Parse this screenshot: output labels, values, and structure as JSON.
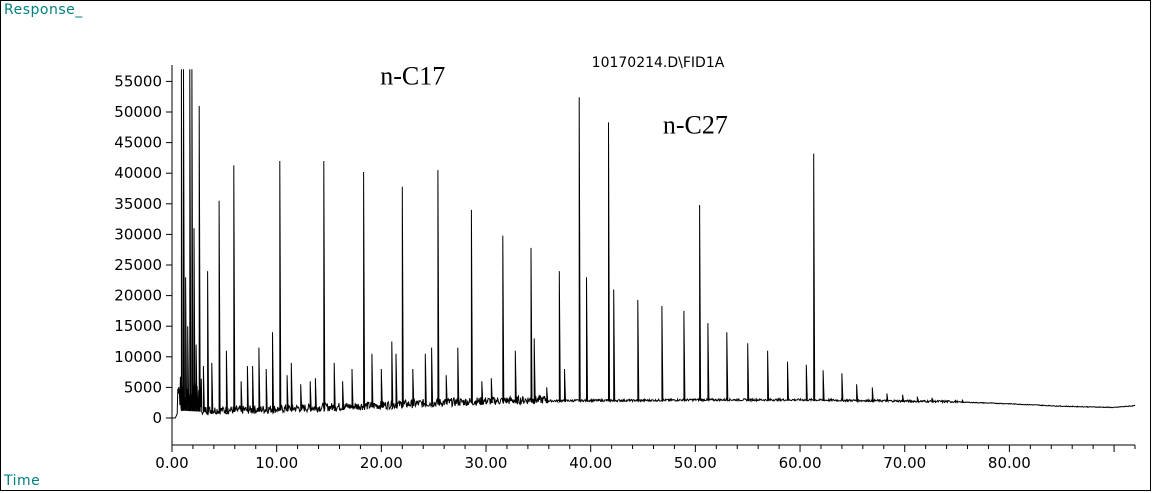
{
  "window": {
    "response_label": "Response_",
    "time_label": "Time"
  },
  "chart_data": {
    "type": "line",
    "title": "10170214.D\\FID1A",
    "xlabel": "Time",
    "ylabel": "Response_",
    "xlim": [
      0,
      92
    ],
    "ylim": [
      0,
      57000
    ],
    "xticks": [
      0,
      10,
      20,
      30,
      40,
      50,
      60,
      70,
      80
    ],
    "xtick_labels": [
      "0.00",
      "10.00",
      "20.00",
      "30.00",
      "40.00",
      "50.00",
      "60.00",
      "70.00",
      "80.00"
    ],
    "yticks": [
      0,
      5000,
      10000,
      15000,
      20000,
      25000,
      30000,
      35000,
      40000,
      45000,
      50000,
      55000
    ],
    "ytick_labels": [
      "0",
      "5000",
      "10000",
      "15000",
      "20000",
      "25000",
      "30000",
      "35000",
      "40000",
      "45000",
      "50000",
      "55000"
    ],
    "annotations": [
      {
        "text": "n-C17",
        "x": 23.0,
        "y": 54500
      },
      {
        "text": "n-C27",
        "x": 50.0,
        "y": 46500
      }
    ],
    "series": [
      {
        "baseline": [
          [
            0,
            0
          ],
          [
            0.3,
            0
          ],
          [
            0.6,
            1000
          ],
          [
            1,
            1200
          ],
          [
            3,
            1000
          ],
          [
            6,
            1000
          ],
          [
            10,
            1200
          ],
          [
            15,
            1500
          ],
          [
            20,
            1800
          ],
          [
            25,
            2200
          ],
          [
            30,
            2500
          ],
          [
            35,
            2700
          ],
          [
            40,
            2800
          ],
          [
            45,
            2800
          ],
          [
            50,
            2900
          ],
          [
            55,
            2900
          ],
          [
            60,
            2900
          ],
          [
            65,
            2800
          ],
          [
            70,
            2700
          ],
          [
            75,
            2600
          ],
          [
            80,
            2300
          ],
          [
            85,
            1900
          ],
          [
            90,
            1700
          ],
          [
            92,
            2000
          ]
        ],
        "peaks": [
          [
            0.9,
            57000
          ],
          [
            1.1,
            57000
          ],
          [
            1.3,
            23000
          ],
          [
            1.5,
            15000
          ],
          [
            1.7,
            57000
          ],
          [
            1.9,
            57000
          ],
          [
            2.1,
            31000
          ],
          [
            2.3,
            12000
          ],
          [
            2.6,
            51000
          ],
          [
            3.0,
            8500
          ],
          [
            3.4,
            24000
          ],
          [
            3.8,
            9000
          ],
          [
            4.5,
            35500
          ],
          [
            5.2,
            11000
          ],
          [
            5.9,
            41300
          ],
          [
            6.6,
            6000
          ],
          [
            7.2,
            8500
          ],
          [
            7.7,
            8500
          ],
          [
            8.3,
            11500
          ],
          [
            9.0,
            8000
          ],
          [
            9.6,
            14000
          ],
          [
            10.3,
            42000
          ],
          [
            11.0,
            7000
          ],
          [
            11.4,
            9000
          ],
          [
            12.3,
            5500
          ],
          [
            13.2,
            6000
          ],
          [
            13.7,
            6500
          ],
          [
            14.5,
            42000
          ],
          [
            15.5,
            9000
          ],
          [
            16.3,
            6000
          ],
          [
            17.2,
            8000
          ],
          [
            18.3,
            40200
          ],
          [
            19.1,
            10500
          ],
          [
            20.0,
            8000
          ],
          [
            21.0,
            12500
          ],
          [
            21.4,
            10500
          ],
          [
            22.0,
            37800
          ],
          [
            23.0,
            8000
          ],
          [
            24.2,
            10500
          ],
          [
            24.8,
            11500
          ],
          [
            25.4,
            40500
          ],
          [
            26.2,
            7000
          ],
          [
            27.3,
            11500
          ],
          [
            28.6,
            34000
          ],
          [
            29.6,
            6000
          ],
          [
            30.5,
            6500
          ],
          [
            31.6,
            29800
          ],
          [
            32.8,
            11000
          ],
          [
            34.3,
            27800
          ],
          [
            34.6,
            13000
          ],
          [
            35.8,
            5000
          ],
          [
            37.0,
            24000
          ],
          [
            37.5,
            8000
          ],
          [
            38.9,
            52400
          ],
          [
            39.6,
            23000
          ],
          [
            41.7,
            48300
          ],
          [
            42.2,
            21000
          ],
          [
            44.5,
            19300
          ],
          [
            46.8,
            18300
          ],
          [
            48.9,
            17500
          ],
          [
            50.4,
            34800
          ],
          [
            51.2,
            15500
          ],
          [
            53.0,
            14000
          ],
          [
            55.0,
            12200
          ],
          [
            56.9,
            11000
          ],
          [
            58.8,
            9200
          ],
          [
            60.6,
            8700
          ],
          [
            61.3,
            43200
          ],
          [
            62.2,
            7800
          ],
          [
            64.0,
            7300
          ],
          [
            65.4,
            5500
          ],
          [
            66.9,
            5000
          ],
          [
            68.3,
            4000
          ],
          [
            69.8,
            3800
          ],
          [
            71.2,
            3500
          ],
          [
            72.6,
            3300
          ],
          [
            75.5,
            3000
          ]
        ]
      }
    ]
  }
}
